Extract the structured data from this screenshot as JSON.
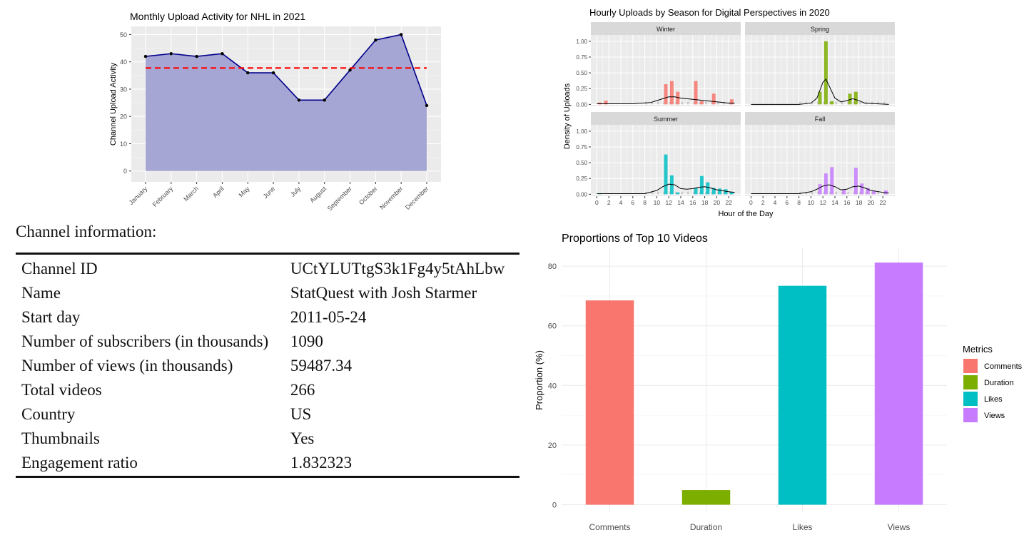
{
  "chart_data": [
    {
      "type": "area",
      "title": "Monthly Upload Activity for NHL in 2021",
      "xlabel": "",
      "ylabel": "Channel Upload Activity",
      "categories": [
        "January",
        "February",
        "March",
        "April",
        "May",
        "June",
        "July",
        "August",
        "September",
        "October",
        "November",
        "December"
      ],
      "values": [
        42,
        43,
        42,
        43,
        36,
        36,
        26,
        26,
        37,
        48,
        50,
        24
      ],
      "reference_line": 37.75,
      "ylim": [
        -4,
        53
      ],
      "yticks": [
        0,
        10,
        20,
        30,
        40,
        50
      ],
      "grid": true,
      "colors": {
        "fill": "#a6a6d4",
        "line": "#00008b",
        "reference": "#ff0000",
        "panel": "#ebebeb"
      }
    },
    {
      "type": "bar",
      "title": "Hourly Uploads by Season for Digital Perspectives in 2020",
      "xlabel": "Hour of the Day",
      "ylabel": "Density of Uploads",
      "xticks": [
        0,
        2,
        4,
        6,
        8,
        10,
        12,
        14,
        16,
        18,
        20,
        22
      ],
      "yticks": [
        "0.00",
        "0.25",
        "0.50",
        "0.75",
        "1.00"
      ],
      "ylim": [
        -0.03,
        1.1
      ],
      "grid": true,
      "panels": [
        {
          "name": "Winter",
          "color": "#f8766d",
          "bars": [
            {
              "x": 0.5,
              "y": 0.03
            },
            {
              "x": 1.5,
              "y": 0.06
            },
            {
              "x": 11.5,
              "y": 0.32
            },
            {
              "x": 12.5,
              "y": 0.37
            },
            {
              "x": 13.5,
              "y": 0.2
            },
            {
              "x": 16.5,
              "y": 0.37
            },
            {
              "x": 17.5,
              "y": 0.05
            },
            {
              "x": 19.5,
              "y": 0.17
            },
            {
              "x": 22.5,
              "y": 0.08
            }
          ],
          "density": [
            [
              0,
              0.01
            ],
            [
              6,
              0.01
            ],
            [
              9,
              0.03
            ],
            [
              10,
              0.06
            ],
            [
              11,
              0.09
            ],
            [
              12,
              0.12
            ],
            [
              13,
              0.12
            ],
            [
              14,
              0.1
            ],
            [
              16,
              0.08
            ],
            [
              18,
              0.06
            ],
            [
              20,
              0.04
            ],
            [
              22,
              0.02
            ],
            [
              23,
              0.02
            ]
          ]
        },
        {
          "name": "Spring",
          "color": "#7cae00",
          "bars": [
            {
              "x": 11.5,
              "y": 0.2
            },
            {
              "x": 12.5,
              "y": 1.0
            },
            {
              "x": 13.5,
              "y": 0.05
            },
            {
              "x": 16.5,
              "y": 0.17
            },
            {
              "x": 17.5,
              "y": 0.2
            }
          ],
          "density": [
            [
              0,
              0
            ],
            [
              8,
              0
            ],
            [
              10,
              0.02
            ],
            [
              11,
              0.1
            ],
            [
              12,
              0.35
            ],
            [
              12.5,
              0.4
            ],
            [
              13,
              0.3
            ],
            [
              14,
              0.1
            ],
            [
              15,
              0.04
            ],
            [
              16,
              0.06
            ],
            [
              17,
              0.09
            ],
            [
              18,
              0.06
            ],
            [
              19,
              0.02
            ],
            [
              21,
              0.01
            ],
            [
              23,
              0.0
            ]
          ]
        },
        {
          "name": "Summer",
          "color": "#00bfc4",
          "bars": [
            {
              "x": 0.5,
              "y": 0.01
            },
            {
              "x": 11.5,
              "y": 0.63
            },
            {
              "x": 12.5,
              "y": 0.3
            },
            {
              "x": 13.5,
              "y": 0.03
            },
            {
              "x": 16.5,
              "y": 0.1
            },
            {
              "x": 17.5,
              "y": 0.29
            },
            {
              "x": 18.5,
              "y": 0.19
            },
            {
              "x": 19.5,
              "y": 0.1
            },
            {
              "x": 20.5,
              "y": 0.09
            },
            {
              "x": 21.5,
              "y": 0.08
            },
            {
              "x": 22.5,
              "y": 0.04
            }
          ],
          "density": [
            [
              0,
              0.01
            ],
            [
              8,
              0.01
            ],
            [
              10,
              0.06
            ],
            [
              11,
              0.12
            ],
            [
              12,
              0.16
            ],
            [
              13,
              0.15
            ],
            [
              14,
              0.09
            ],
            [
              15,
              0.08
            ],
            [
              16,
              0.09
            ],
            [
              17,
              0.11
            ],
            [
              18,
              0.12
            ],
            [
              19,
              0.1
            ],
            [
              20,
              0.07
            ],
            [
              22,
              0.04
            ],
            [
              23,
              0.03
            ]
          ]
        },
        {
          "name": "Fall",
          "color": "#c77cff",
          "bars": [
            {
              "x": 11.5,
              "y": 0.16
            },
            {
              "x": 12.5,
              "y": 0.33
            },
            {
              "x": 13.5,
              "y": 0.43
            },
            {
              "x": 15.5,
              "y": 0.07
            },
            {
              "x": 17.5,
              "y": 0.42
            },
            {
              "x": 18.5,
              "y": 0.17
            },
            {
              "x": 19.5,
              "y": 0.1
            },
            {
              "x": 20.5,
              "y": 0.05
            },
            {
              "x": 22.5,
              "y": 0.06
            }
          ],
          "density": [
            [
              0,
              0.01
            ],
            [
              8,
              0.01
            ],
            [
              10,
              0.04
            ],
            [
              11,
              0.08
            ],
            [
              12,
              0.13
            ],
            [
              13,
              0.15
            ],
            [
              14,
              0.12
            ],
            [
              15,
              0.07
            ],
            [
              16,
              0.08
            ],
            [
              17,
              0.12
            ],
            [
              18,
              0.13
            ],
            [
              19,
              0.1
            ],
            [
              20,
              0.06
            ],
            [
              22,
              0.03
            ],
            [
              23,
              0.02
            ]
          ]
        }
      ]
    },
    {
      "type": "bar",
      "title": "Proportions of Top 10 Videos",
      "xlabel": "",
      "ylabel": "Proportion (%)",
      "categories": [
        "Comments",
        "Duration",
        "Likes",
        "Views"
      ],
      "values": [
        68.5,
        4.9,
        73.4,
        81.2
      ],
      "ylim": [
        -2.5,
        86
      ],
      "yticks": [
        0,
        20,
        40,
        60,
        80
      ],
      "legend": {
        "title": "Metrics",
        "position": "right"
      },
      "colors": [
        "#f8766d",
        "#7cae00",
        "#00bfc4",
        "#c77cff"
      ],
      "grid": true
    }
  ],
  "info": {
    "heading": "Channel information:",
    "rows": [
      {
        "label": "Channel ID",
        "value": "UCtYLUTtgS3k1Fg4y5tAhLbw"
      },
      {
        "label": "Name",
        "value": "StatQuest with Josh Starmer"
      },
      {
        "label": "Start day",
        "value": "2011-05-24"
      },
      {
        "label": "Number of subscribers (in thousands)",
        "value": "1090"
      },
      {
        "label": "Number of views (in thousands)",
        "value": "59487.34"
      },
      {
        "label": "Total videos",
        "value": "266"
      },
      {
        "label": "Country",
        "value": "US"
      },
      {
        "label": "Thumbnails",
        "value": "Yes"
      },
      {
        "label": "Engagement ratio",
        "value": "1.832323"
      }
    ]
  }
}
